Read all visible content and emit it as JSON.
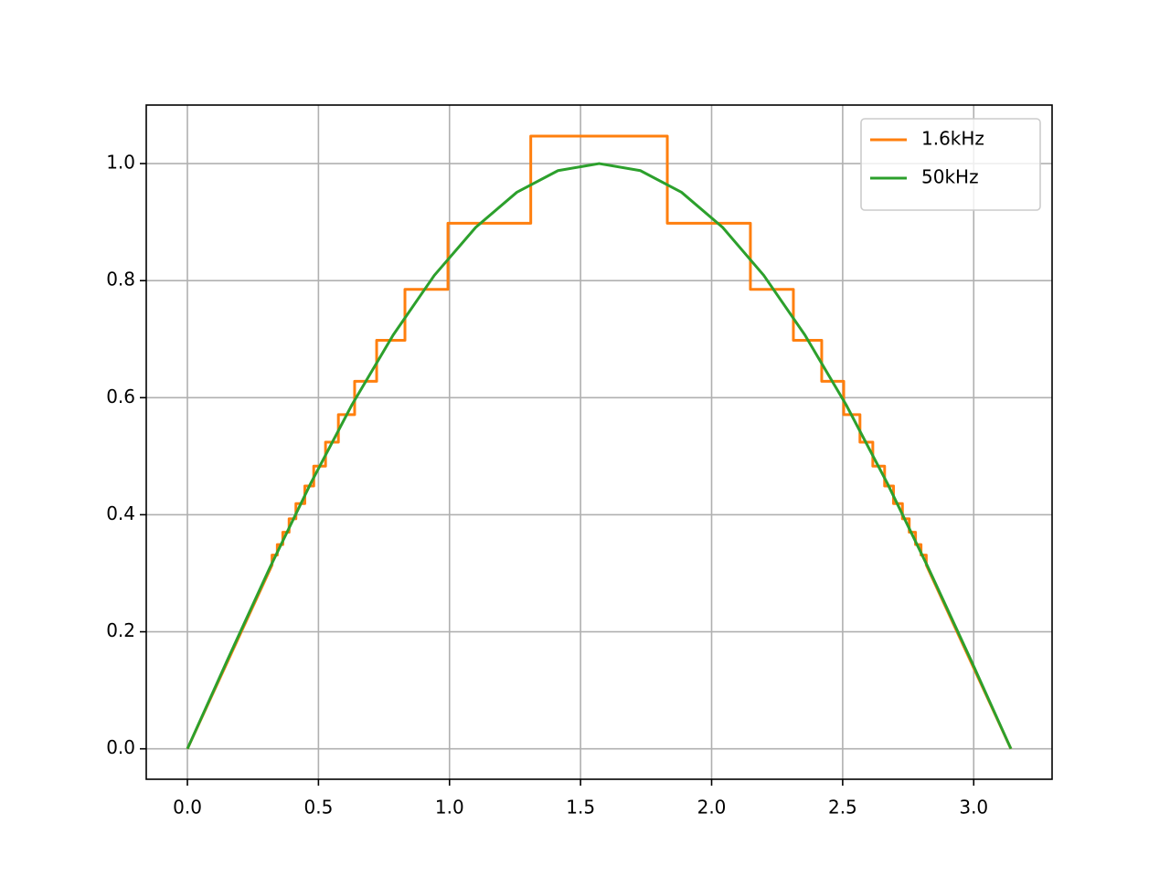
{
  "chart_data": {
    "type": "line",
    "xlim": [
      -0.157,
      3.299
    ],
    "ylim": [
      -0.052,
      1.1
    ],
    "xticks": [
      {
        "value": 0,
        "label": "0.0"
      },
      0.5,
      {
        "value": 1,
        "label": "1.0"
      },
      1.5,
      {
        "value": 2,
        "label": "2.0"
      },
      2.5,
      {
        "value": 3,
        "label": "3.0"
      }
    ],
    "yticks": [
      {
        "value": 0,
        "label": "0.0"
      },
      0.2,
      0.4,
      0.6,
      0.8,
      {
        "value": 1,
        "label": "1.0"
      }
    ],
    "grid": true,
    "legend": "upper right",
    "series": [
      {
        "name": "1.6kHz",
        "color": "#ff7f0e",
        "x": [
          0,
          0.323,
          0.323,
          0.343,
          0.343,
          0.364,
          0.364,
          0.388,
          0.388,
          0.414,
          0.414,
          0.448,
          0.448,
          0.482,
          0.482,
          0.527,
          0.527,
          0.576,
          0.576,
          0.638,
          0.638,
          0.722,
          0.722,
          0.83,
          0.83,
          0.994,
          0.994,
          1.31,
          1.31,
          1.831,
          1.831,
          2.148,
          2.148,
          2.312,
          2.312,
          2.42,
          2.42,
          2.504,
          2.504,
          2.566,
          2.566,
          2.615,
          2.615,
          2.66,
          2.66,
          2.694,
          2.694,
          2.728,
          2.728,
          2.754,
          2.754,
          2.778,
          2.778,
          2.799,
          2.799,
          2.819,
          2.819,
          3.142
        ],
        "values": [
          0,
          0.314,
          0.331,
          0.331,
          0.349,
          0.349,
          0.37,
          0.37,
          0.393,
          0.393,
          0.419,
          0.419,
          0.449,
          0.449,
          0.483,
          0.483,
          0.524,
          0.524,
          0.571,
          0.571,
          0.628,
          0.628,
          0.698,
          0.698,
          0.785,
          0.785,
          0.898,
          0.898,
          1.047,
          1.047,
          0.898,
          0.898,
          0.785,
          0.785,
          0.698,
          0.698,
          0.628,
          0.628,
          0.571,
          0.571,
          0.524,
          0.524,
          0.483,
          0.483,
          0.449,
          0.449,
          0.419,
          0.419,
          0.393,
          0.393,
          0.37,
          0.37,
          0.349,
          0.349,
          0.331,
          0.331,
          0.314,
          0
        ]
      },
      {
        "name": "50kHz",
        "color": "#2ca02c",
        "x": [
          0,
          0.157,
          0.314,
          0.471,
          0.628,
          0.785,
          0.942,
          1.1,
          1.257,
          1.414,
          1.571,
          1.728,
          1.885,
          2.042,
          2.199,
          2.356,
          2.513,
          2.67,
          2.827,
          2.985,
          3.142
        ],
        "values": [
          0,
          0.156,
          0.309,
          0.454,
          0.588,
          0.707,
          0.809,
          0.891,
          0.951,
          0.988,
          1.0,
          0.988,
          0.951,
          0.891,
          0.809,
          0.707,
          0.588,
          0.454,
          0.309,
          0.156,
          0
        ]
      }
    ]
  }
}
